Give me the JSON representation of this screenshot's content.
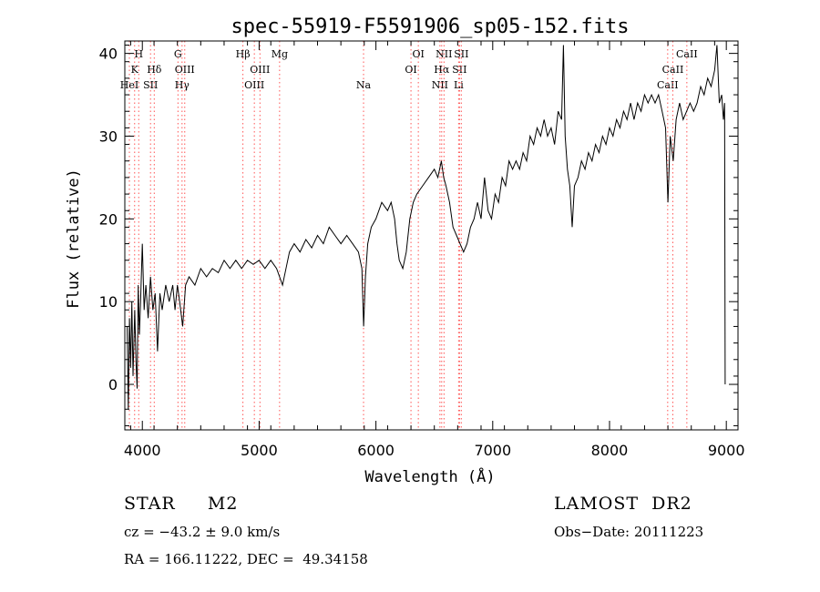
{
  "chart_data": {
    "type": "line",
    "title": "spec-55919-F5591906_sp05-152.fits",
    "xlabel": "Wavelength (Å)",
    "ylabel": "Flux (relative)",
    "xlim": [
      3850,
      9100
    ],
    "ylim": [
      -5.5,
      41.5
    ],
    "xticks": [
      4000,
      5000,
      6000,
      7000,
      8000,
      9000
    ],
    "yticks": [
      0,
      10,
      20,
      30,
      40
    ],
    "grid": false,
    "line_color": "#000000",
    "marker_color": "#ff5555",
    "lines": [
      {
        "label": "HeI",
        "wave": 3889,
        "row": 3
      },
      {
        "label": "K",
        "wave": 3934,
        "row": 2
      },
      {
        "label": "H",
        "wave": 3969,
        "row": 1
      },
      {
        "label": "SII",
        "wave": 4070,
        "row": 3
      },
      {
        "label": "Hδ",
        "wave": 4102,
        "row": 2
      },
      {
        "label": "G",
        "wave": 4305,
        "row": 1
      },
      {
        "label": "Hγ",
        "wave": 4340,
        "row": 3
      },
      {
        "label": "OIII",
        "wave": 4363,
        "row": 2
      },
      {
        "label": "Hβ",
        "wave": 4861,
        "row": 1
      },
      {
        "label": "OIII",
        "wave": 4959,
        "row": 3
      },
      {
        "label": "OIII",
        "wave": 5007,
        "row": 2
      },
      {
        "label": "Mg",
        "wave": 5175,
        "row": 1
      },
      {
        "label": "Na",
        "wave": 5894,
        "row": 3
      },
      {
        "label": "OI",
        "wave": 6300,
        "row": 2
      },
      {
        "label": "OI",
        "wave": 6363,
        "row": 1
      },
      {
        "label": "NII",
        "wave": 6548,
        "row": 3
      },
      {
        "label": "Hα",
        "wave": 6563,
        "row": 2
      },
      {
        "label": "NII",
        "wave": 6583,
        "row": 1
      },
      {
        "label": "SII",
        "wave": 6716,
        "row": 2
      },
      {
        "label": "Li",
        "wave": 6708,
        "row": 3
      },
      {
        "label": "SII",
        "wave": 6731,
        "row": 1
      },
      {
        "label": "CaII",
        "wave": 8498,
        "row": 3
      },
      {
        "label": "CaII",
        "wave": 8542,
        "row": 2
      },
      {
        "label": "CaII",
        "wave": 8662,
        "row": 1
      }
    ],
    "series": [
      {
        "values": [
          [
            3870,
            7
          ],
          [
            3880,
            -3
          ],
          [
            3890,
            8
          ],
          [
            3900,
            2
          ],
          [
            3910,
            10
          ],
          [
            3920,
            1
          ],
          [
            3935,
            9
          ],
          [
            3945,
            3
          ],
          [
            3955,
            -0.5
          ],
          [
            3965,
            12
          ],
          [
            3975,
            6
          ],
          [
            3985,
            10
          ],
          [
            4000,
            17
          ],
          [
            4015,
            9
          ],
          [
            4030,
            12
          ],
          [
            4050,
            8
          ],
          [
            4070,
            13
          ],
          [
            4090,
            9
          ],
          [
            4110,
            11
          ],
          [
            4130,
            4
          ],
          [
            4150,
            11
          ],
          [
            4170,
            9
          ],
          [
            4200,
            12
          ],
          [
            4230,
            10
          ],
          [
            4260,
            12
          ],
          [
            4280,
            9
          ],
          [
            4300,
            12
          ],
          [
            4320,
            10
          ],
          [
            4345,
            7
          ],
          [
            4370,
            12
          ],
          [
            4400,
            13
          ],
          [
            4450,
            12
          ],
          [
            4500,
            14
          ],
          [
            4550,
            13
          ],
          [
            4600,
            14
          ],
          [
            4650,
            13.5
          ],
          [
            4700,
            15
          ],
          [
            4750,
            14
          ],
          [
            4800,
            15
          ],
          [
            4850,
            14
          ],
          [
            4900,
            15
          ],
          [
            4950,
            14.5
          ],
          [
            5000,
            15
          ],
          [
            5050,
            14
          ],
          [
            5100,
            15
          ],
          [
            5150,
            14
          ],
          [
            5200,
            12
          ],
          [
            5230,
            14
          ],
          [
            5260,
            16
          ],
          [
            5300,
            17
          ],
          [
            5350,
            16
          ],
          [
            5400,
            17.5
          ],
          [
            5450,
            16.5
          ],
          [
            5500,
            18
          ],
          [
            5550,
            17
          ],
          [
            5600,
            19
          ],
          [
            5650,
            18
          ],
          [
            5700,
            17
          ],
          [
            5750,
            18
          ],
          [
            5800,
            17
          ],
          [
            5850,
            16
          ],
          [
            5880,
            14
          ],
          [
            5895,
            7
          ],
          [
            5910,
            13
          ],
          [
            5930,
            17
          ],
          [
            5960,
            19
          ],
          [
            6000,
            20
          ],
          [
            6050,
            22
          ],
          [
            6100,
            21
          ],
          [
            6130,
            22
          ],
          [
            6160,
            20
          ],
          [
            6180,
            17
          ],
          [
            6200,
            15
          ],
          [
            6230,
            14
          ],
          [
            6260,
            16
          ],
          [
            6290,
            20
          ],
          [
            6320,
            22
          ],
          [
            6350,
            23
          ],
          [
            6400,
            24
          ],
          [
            6450,
            25
          ],
          [
            6500,
            26
          ],
          [
            6530,
            25
          ],
          [
            6560,
            27
          ],
          [
            6580,
            25
          ],
          [
            6600,
            24
          ],
          [
            6630,
            22
          ],
          [
            6660,
            19
          ],
          [
            6690,
            18
          ],
          [
            6720,
            17
          ],
          [
            6750,
            16
          ],
          [
            6780,
            17
          ],
          [
            6810,
            19
          ],
          [
            6840,
            20
          ],
          [
            6870,
            22
          ],
          [
            6900,
            20
          ],
          [
            6930,
            25
          ],
          [
            6960,
            21
          ],
          [
            6990,
            20
          ],
          [
            7020,
            23
          ],
          [
            7050,
            22
          ],
          [
            7080,
            25
          ],
          [
            7110,
            24
          ],
          [
            7140,
            27
          ],
          [
            7170,
            26
          ],
          [
            7200,
            27
          ],
          [
            7230,
            26
          ],
          [
            7260,
            28
          ],
          [
            7290,
            27
          ],
          [
            7320,
            30
          ],
          [
            7350,
            29
          ],
          [
            7380,
            31
          ],
          [
            7410,
            30
          ],
          [
            7440,
            32
          ],
          [
            7470,
            30
          ],
          [
            7500,
            31
          ],
          [
            7530,
            29
          ],
          [
            7560,
            33
          ],
          [
            7590,
            32
          ],
          [
            7605,
            41
          ],
          [
            7620,
            30
          ],
          [
            7640,
            26
          ],
          [
            7660,
            24
          ],
          [
            7680,
            19
          ],
          [
            7700,
            24
          ],
          [
            7730,
            25
          ],
          [
            7760,
            27
          ],
          [
            7790,
            26
          ],
          [
            7820,
            28
          ],
          [
            7850,
            27
          ],
          [
            7880,
            29
          ],
          [
            7910,
            28
          ],
          [
            7940,
            30
          ],
          [
            7970,
            29
          ],
          [
            8000,
            31
          ],
          [
            8030,
            30
          ],
          [
            8060,
            32
          ],
          [
            8090,
            31
          ],
          [
            8120,
            33
          ],
          [
            8150,
            32
          ],
          [
            8180,
            34
          ],
          [
            8210,
            32
          ],
          [
            8240,
            34
          ],
          [
            8270,
            33
          ],
          [
            8300,
            35
          ],
          [
            8330,
            34
          ],
          [
            8360,
            35
          ],
          [
            8390,
            34
          ],
          [
            8420,
            35
          ],
          [
            8450,
            33
          ],
          [
            8480,
            31
          ],
          [
            8500,
            22
          ],
          [
            8520,
            30
          ],
          [
            8545,
            27
          ],
          [
            8570,
            32
          ],
          [
            8600,
            34
          ],
          [
            8630,
            32
          ],
          [
            8660,
            33
          ],
          [
            8690,
            34
          ],
          [
            8720,
            33
          ],
          [
            8750,
            34
          ],
          [
            8780,
            36
          ],
          [
            8810,
            35
          ],
          [
            8840,
            37
          ],
          [
            8870,
            36
          ],
          [
            8900,
            38
          ],
          [
            8920,
            41
          ],
          [
            8940,
            34
          ],
          [
            8960,
            35
          ],
          [
            8975,
            32
          ],
          [
            8985,
            34
          ],
          [
            8990,
            0
          ]
        ]
      }
    ]
  },
  "info": {
    "object": "STAR     M2",
    "survey": "LAMOST  DR2",
    "cz": "cz = −43.2 ± 9.0 km/s",
    "obs_date": "Obs−Date: 20111223",
    "radec": "RA = 166.11222, DEC =  49.34158"
  }
}
